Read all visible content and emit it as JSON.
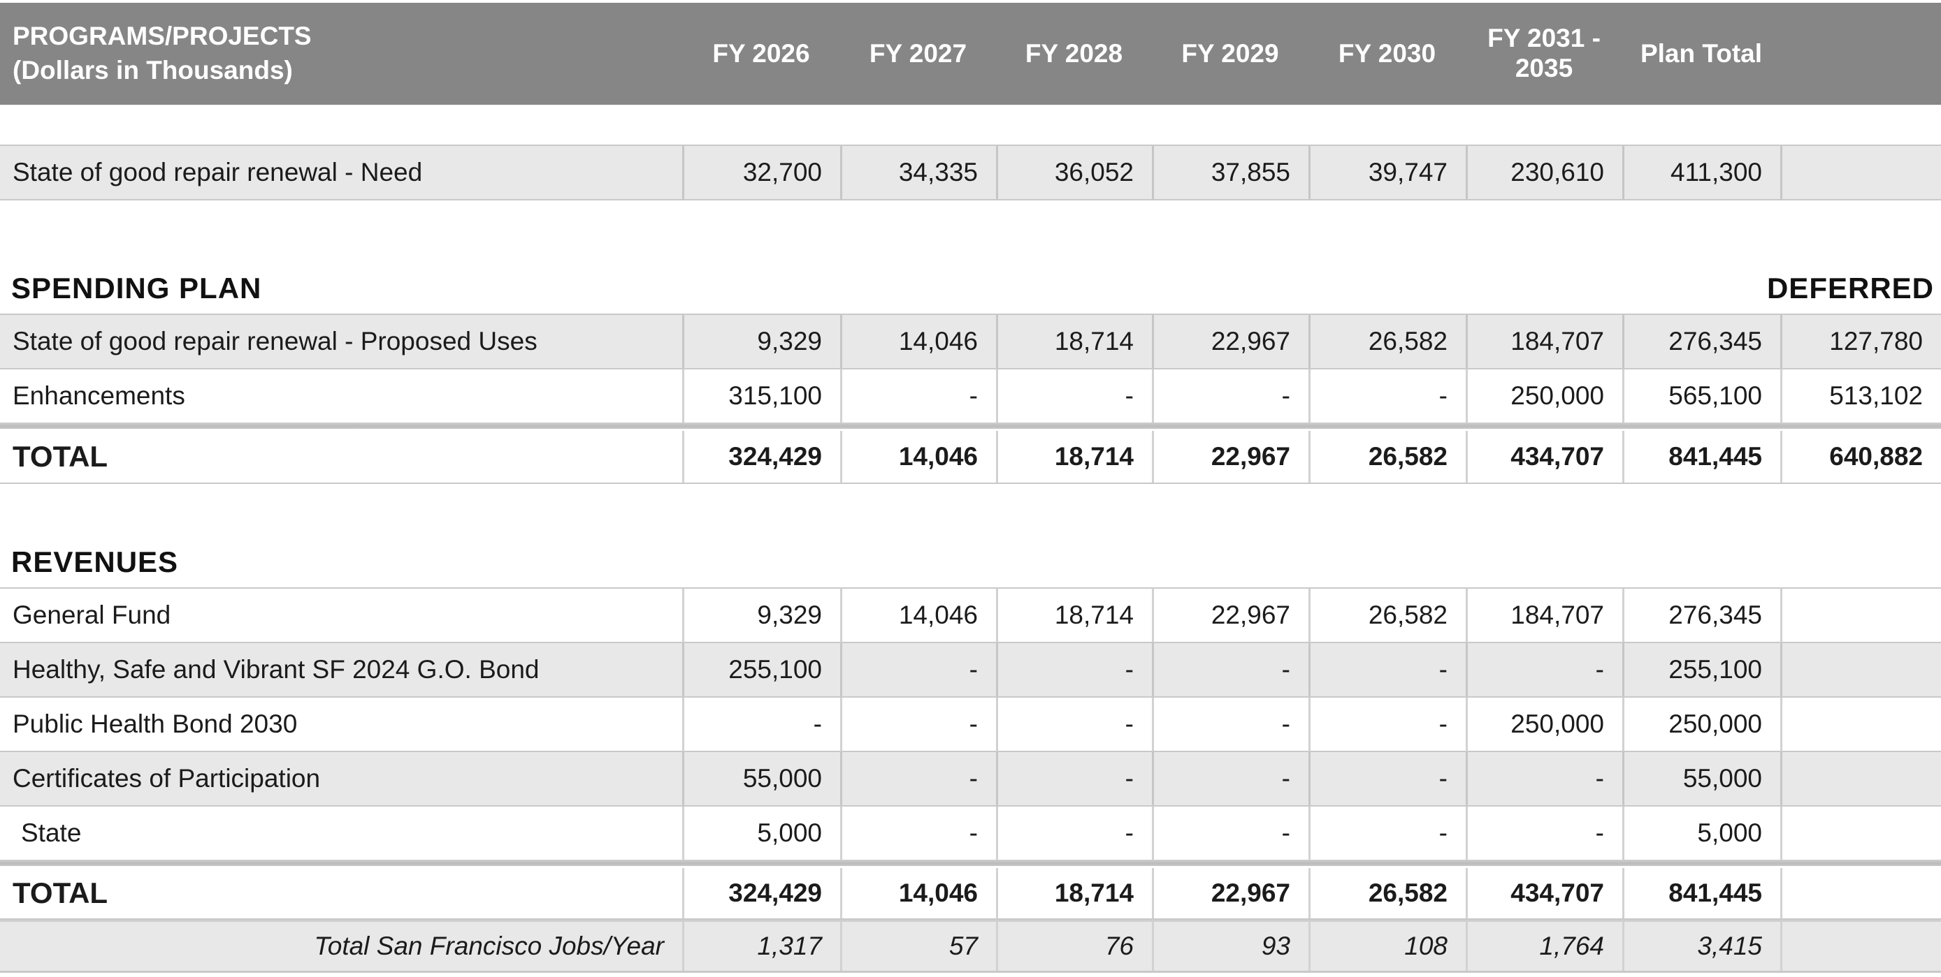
{
  "header": {
    "corner_line1": "PROGRAMS/PROJECTS",
    "corner_line2": "(Dollars in Thousands)",
    "columns": [
      "FY 2026",
      "FY 2027",
      "FY 2028",
      "FY 2029",
      "FY 2030",
      "FY 2031 - 2035",
      "Plan Total"
    ]
  },
  "need_section": {
    "rows": [
      {
        "label": "State of good repair renewal - Need",
        "values": [
          "32,700",
          "34,335",
          "36,052",
          "37,855",
          "39,747",
          "230,610",
          "411,300"
        ],
        "deferred": "",
        "shade": true,
        "indent": false
      }
    ]
  },
  "spending_section": {
    "heading": "SPENDING PLAN",
    "deferred_heading": "DEFERRED",
    "rows": [
      {
        "label": "State of good repair renewal - Proposed Uses",
        "values": [
          "9,329",
          "14,046",
          "18,714",
          "22,967",
          "26,582",
          "184,707",
          "276,345"
        ],
        "deferred": "127,780",
        "shade": true,
        "indent": false
      },
      {
        "label": "Enhancements",
        "values": [
          "315,100",
          "-",
          "-",
          "-",
          "-",
          "250,000",
          "565,100"
        ],
        "deferred": "513,102",
        "shade": false,
        "indent": false
      }
    ],
    "total": {
      "label": "TOTAL",
      "values": [
        "324,429",
        "14,046",
        "18,714",
        "22,967",
        "26,582",
        "434,707",
        "841,445"
      ],
      "deferred": "640,882"
    }
  },
  "revenues_section": {
    "heading": "REVENUES",
    "rows": [
      {
        "label": "General Fund",
        "values": [
          "9,329",
          "14,046",
          "18,714",
          "22,967",
          "26,582",
          "184,707",
          "276,345"
        ],
        "deferred": "",
        "shade": false,
        "indent": false
      },
      {
        "label": "Healthy, Safe and Vibrant SF 2024 G.O. Bond",
        "values": [
          "255,100",
          "-",
          "-",
          "-",
          "-",
          "-",
          "255,100"
        ],
        "deferred": "",
        "shade": true,
        "indent": false
      },
      {
        "label": "Public Health Bond 2030",
        "values": [
          "-",
          "-",
          "-",
          "-",
          "-",
          "250,000",
          "250,000"
        ],
        "deferred": "",
        "shade": false,
        "indent": false
      },
      {
        "label": "Certificates of Participation",
        "values": [
          "55,000",
          "-",
          "-",
          "-",
          "-",
          "-",
          "55,000"
        ],
        "deferred": "",
        "shade": true,
        "indent": false
      },
      {
        "label": "State",
        "values": [
          "5,000",
          "-",
          "-",
          "-",
          "-",
          "-",
          "5,000"
        ],
        "deferred": "",
        "shade": false,
        "indent": true
      }
    ],
    "total": {
      "label": "TOTAL",
      "values": [
        "324,429",
        "14,046",
        "18,714",
        "22,967",
        "26,582",
        "434,707",
        "841,445"
      ],
      "deferred": ""
    },
    "jobs": {
      "label": "Total San Francisco Jobs/Year",
      "values": [
        "1,317",
        "57",
        "76",
        "93",
        "108",
        "1,764",
        "3,415"
      ],
      "deferred": ""
    }
  },
  "colors": {
    "header_bg": "#868686",
    "header_text": "#ffffff",
    "shaded_row_bg": "#e8e8e8",
    "separator_bar": "#c2c2c2",
    "grid_border": "#c9c9c9",
    "body_text": "#1b1b1b"
  }
}
